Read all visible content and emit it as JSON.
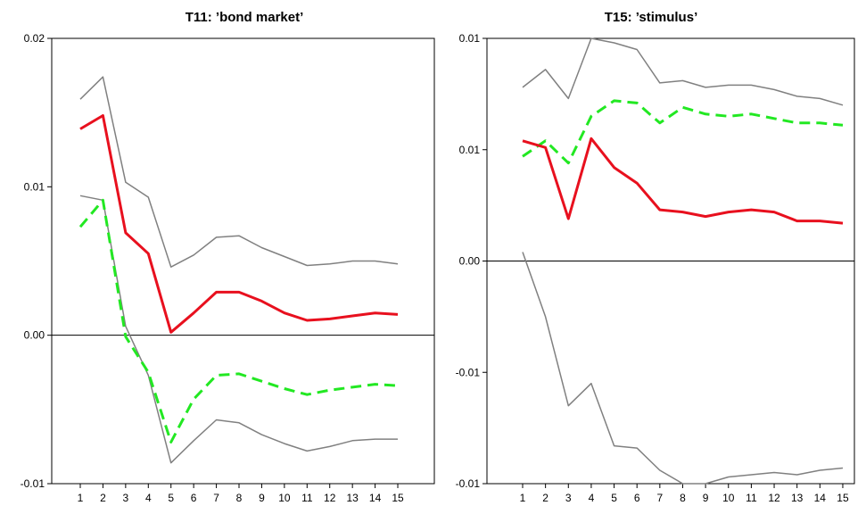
{
  "chart_data": [
    {
      "type": "line",
      "title": "T11: ’bond market’",
      "x": [
        1,
        2,
        3,
        4,
        5,
        6,
        7,
        8,
        9,
        10,
        11,
        12,
        13,
        14,
        15
      ],
      "ylim": [
        -0.01,
        0.02
      ],
      "yticks": [
        "0.02",
        "0.01",
        "0.00",
        "-0.01"
      ],
      "ytick_values": [
        0.02,
        0.01,
        0.0,
        -0.01
      ],
      "zero_line": 0.0,
      "series": [
        {
          "color": "#e8101e",
          "style": "solid",
          "width": 3,
          "values": [
            0.0139,
            0.0148,
            0.0069,
            0.0055,
            0.0002,
            0.0015,
            0.0029,
            0.0029,
            0.0023,
            0.0015,
            0.001,
            0.0011,
            0.0013,
            0.0015,
            0.0014
          ]
        },
        {
          "color": "#22e822",
          "style": "dashed",
          "width": 3,
          "values": [
            0.0073,
            0.0091,
            -0.0001,
            -0.0025,
            -0.0072,
            -0.0043,
            -0.0027,
            -0.0026,
            -0.0031,
            -0.0036,
            -0.004,
            -0.0037,
            -0.0035,
            -0.0033,
            -0.0034
          ]
        },
        {
          "color": "#808080",
          "style": "solid",
          "width": 1.5,
          "values": [
            0.0159,
            0.0174,
            0.0103,
            0.0093,
            0.0046,
            0.0054,
            0.0066,
            0.0067,
            0.0059,
            0.0053,
            0.0047,
            0.0048,
            0.005,
            0.005,
            0.0048
          ]
        },
        {
          "color": "#808080",
          "style": "solid",
          "width": 1.5,
          "values": [
            0.0094,
            0.0091,
            0.0006,
            -0.0027,
            -0.0086,
            -0.0071,
            -0.0057,
            -0.0059,
            -0.0067,
            -0.0073,
            -0.0078,
            -0.0075,
            -0.0071,
            -0.007,
            -0.007
          ]
        }
      ]
    },
    {
      "type": "line",
      "title": "T15: ’stimulus’",
      "x": [
        1,
        2,
        3,
        4,
        5,
        6,
        7,
        8,
        9,
        10,
        11,
        12,
        13,
        14,
        15
      ],
      "ylim": [
        -0.01,
        0.01
      ],
      "yticks": [
        "0.01",
        "0.01",
        "0.00",
        "-0.01",
        "-0.01"
      ],
      "ytick_values": [
        0.01,
        0.005,
        0.0,
        -0.005,
        -0.01
      ],
      "zero_line": 0.0,
      "series": [
        {
          "color": "#e8101e",
          "style": "solid",
          "width": 3,
          "values": [
            0.0054,
            0.0051,
            0.0019,
            0.0055,
            0.0042,
            0.0035,
            0.0023,
            0.0022,
            0.002,
            0.0022,
            0.0023,
            0.0022,
            0.0018,
            0.0018,
            0.0017
          ]
        },
        {
          "color": "#22e822",
          "style": "dashed",
          "width": 3,
          "values": [
            0.0047,
            0.0054,
            0.0044,
            0.0065,
            0.0072,
            0.0071,
            0.0062,
            0.0069,
            0.0066,
            0.0065,
            0.0066,
            0.0064,
            0.0062,
            0.0062,
            0.0061
          ]
        },
        {
          "color": "#808080",
          "style": "solid",
          "width": 1.5,
          "values": [
            0.0078,
            0.0086,
            0.0073,
            0.01,
            0.0098,
            0.0095,
            0.008,
            0.0081,
            0.0078,
            0.0079,
            0.0079,
            0.0077,
            0.0074,
            0.0073,
            0.007
          ]
        },
        {
          "color": "#808080",
          "style": "solid",
          "width": 1.5,
          "values": [
            0.0004,
            -0.0025,
            -0.0065,
            -0.0055,
            -0.0083,
            -0.0084,
            -0.0094,
            -0.01,
            -0.01,
            -0.0097,
            -0.0096,
            -0.0095,
            -0.0096,
            -0.0094,
            -0.0093
          ]
        }
      ]
    }
  ]
}
